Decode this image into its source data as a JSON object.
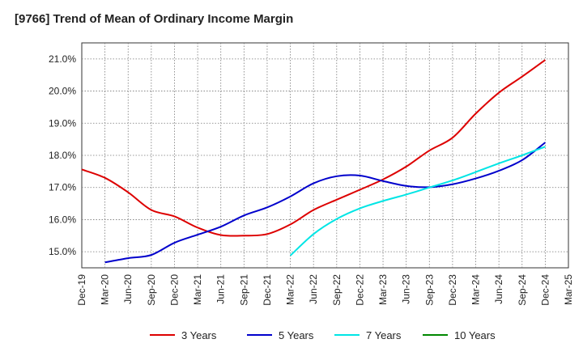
{
  "title": "[9766]  Trend of Mean of Ordinary Income Margin",
  "chart_data": {
    "type": "line",
    "title": "[9766]  Trend of Mean of Ordinary Income Margin",
    "xlabel": "",
    "ylabel": "",
    "ylim": [
      14.5,
      21.5
    ],
    "y_ticks": [
      15.0,
      16.0,
      17.0,
      18.0,
      19.0,
      20.0,
      21.0
    ],
    "y_tick_labels": [
      "15.0%",
      "16.0%",
      "17.0%",
      "18.0%",
      "19.0%",
      "20.0%",
      "21.0%"
    ],
    "x_labels": [
      "Dec-19",
      "Mar-20",
      "Jun-20",
      "Sep-20",
      "Dec-20",
      "Mar-21",
      "Jun-21",
      "Sep-21",
      "Dec-21",
      "Mar-22",
      "Jun-22",
      "Sep-22",
      "Dec-22",
      "Mar-23",
      "Jun-23",
      "Sep-23",
      "Dec-23",
      "Mar-24",
      "Jun-24",
      "Sep-24",
      "Dec-24",
      "Mar-25"
    ],
    "grid": true,
    "legend_position": "bottom",
    "series": [
      {
        "name": "3 Years",
        "color": "#dd0000",
        "x": [
          "Dec-19",
          "Mar-20",
          "Jun-20",
          "Sep-20",
          "Dec-20",
          "Mar-21",
          "Jun-21",
          "Sep-21",
          "Dec-21",
          "Mar-22",
          "Jun-22",
          "Sep-22",
          "Dec-22",
          "Mar-23",
          "Jun-23",
          "Sep-23",
          "Dec-23",
          "Mar-24",
          "Jun-24",
          "Sep-24",
          "Dec-24"
        ],
        "values": [
          17.56,
          17.3,
          16.85,
          16.3,
          16.1,
          15.75,
          15.52,
          15.5,
          15.55,
          15.85,
          16.3,
          16.62,
          16.93,
          17.25,
          17.65,
          18.15,
          18.55,
          19.3,
          19.95,
          20.45,
          20.97
        ]
      },
      {
        "name": "5 Years",
        "color": "#0000cc",
        "x": [
          "Mar-20",
          "Jun-20",
          "Sep-20",
          "Dec-20",
          "Mar-21",
          "Jun-21",
          "Sep-21",
          "Dec-21",
          "Mar-22",
          "Jun-22",
          "Sep-22",
          "Dec-22",
          "Mar-23",
          "Jun-23",
          "Sep-23",
          "Dec-23",
          "Mar-24",
          "Jun-24",
          "Sep-24",
          "Dec-24"
        ],
        "values": [
          14.67,
          14.8,
          14.9,
          15.28,
          15.53,
          15.78,
          16.13,
          16.38,
          16.72,
          17.13,
          17.35,
          17.37,
          17.2,
          17.05,
          17.01,
          17.1,
          17.28,
          17.52,
          17.85,
          18.4
        ]
      },
      {
        "name": "7 Years",
        "color": "#00e5e5",
        "x": [
          "Mar-22",
          "Jun-22",
          "Sep-22",
          "Dec-22",
          "Mar-23",
          "Jun-23",
          "Sep-23",
          "Dec-23",
          "Mar-24",
          "Jun-24",
          "Sep-24",
          "Dec-24"
        ],
        "values": [
          14.88,
          15.55,
          16.02,
          16.35,
          16.58,
          16.78,
          17.0,
          17.22,
          17.48,
          17.75,
          18.0,
          18.27
        ]
      },
      {
        "name": "10 Years",
        "color": "#008800",
        "x": [],
        "values": []
      }
    ]
  }
}
